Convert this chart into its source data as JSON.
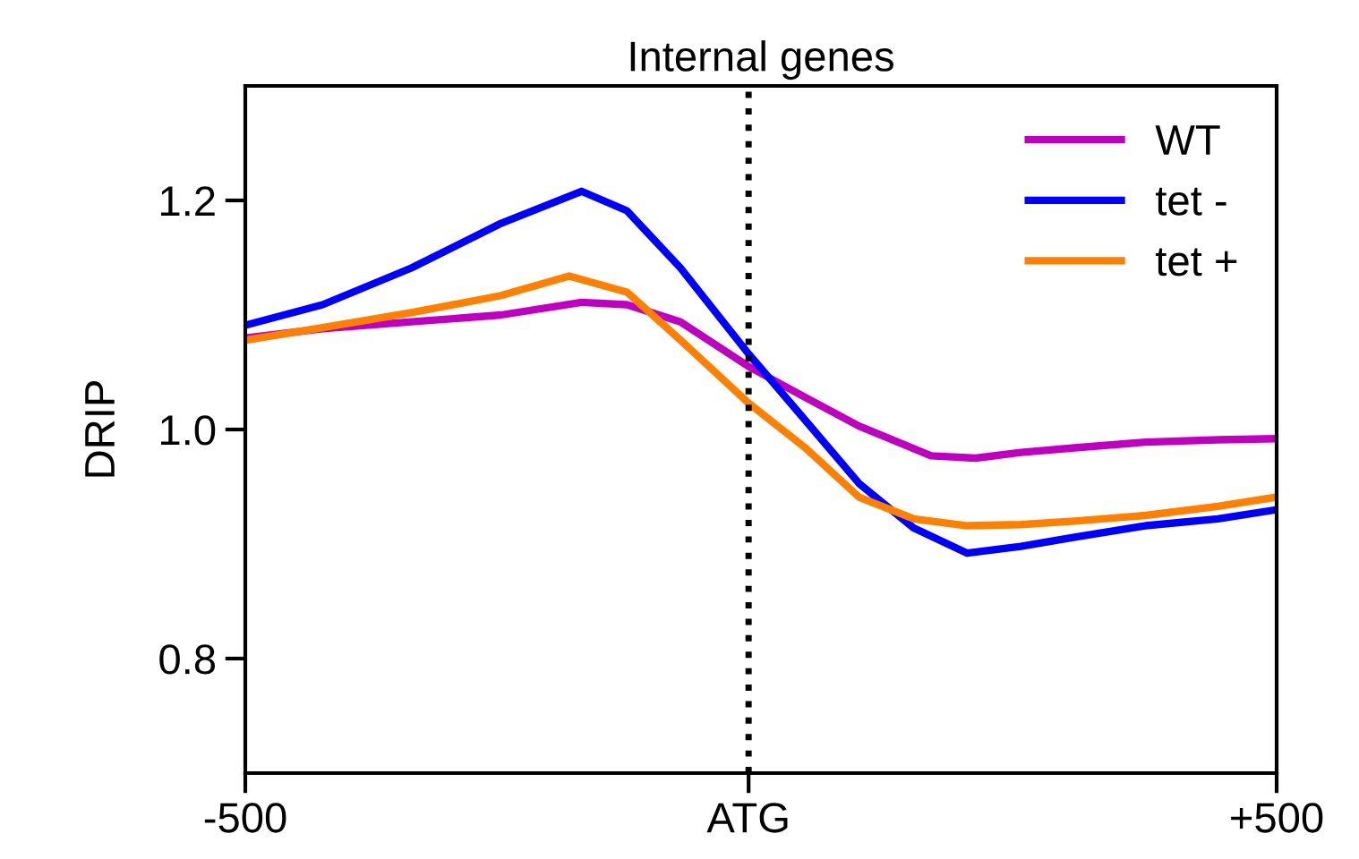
{
  "chart_data": {
    "type": "line",
    "title": "Internal genes",
    "ylabel": "DRIP",
    "xlim": [
      -500,
      500
    ],
    "xticks": [
      {
        "value": -500,
        "label": "-500"
      },
      {
        "value": -12,
        "label": "ATG"
      },
      {
        "value": 500,
        "label": "+500"
      }
    ],
    "ylim": [
      0.7,
      1.3
    ],
    "yticks": [
      {
        "value": 0.8,
        "label": "0.8"
      },
      {
        "value": 1.0,
        "label": "1.0"
      },
      {
        "value": 1.2,
        "label": "1.2"
      }
    ],
    "grid": false,
    "legend": "top right",
    "marker": "none",
    "line_style": "solid",
    "ref_lines": [
      {
        "axis": "x",
        "value": -12,
        "color": "#000000",
        "line_style": "dotted"
      }
    ],
    "series": [
      {
        "name": "WT",
        "color": "#c000c0",
        "x": [
          -500,
          -425,
          -339,
          -252,
          -174,
          -130,
          -78,
          -12,
          43,
          95,
          165,
          208,
          252,
          304,
          373,
          443,
          500
        ],
        "values": [
          1.08,
          1.088,
          1.094,
          1.1,
          1.111,
          1.109,
          1.094,
          1.055,
          1.028,
          1.003,
          0.977,
          0.975,
          0.98,
          0.984,
          0.989,
          0.991,
          0.992
        ]
      },
      {
        "name": "tet -",
        "color": "#0000ff",
        "x": [
          -500,
          -425,
          -339,
          -252,
          -174,
          -130,
          -78,
          -12,
          43,
          95,
          148,
          200,
          252,
          304,
          373,
          443,
          500
        ],
        "values": [
          1.091,
          1.109,
          1.141,
          1.18,
          1.208,
          1.191,
          1.141,
          1.066,
          1.008,
          0.953,
          0.914,
          0.892,
          0.898,
          0.906,
          0.916,
          0.922,
          0.93
        ]
      },
      {
        "name": "tet +",
        "color": "#ff8000",
        "x": [
          -500,
          -425,
          -339,
          -252,
          -186,
          -130,
          -78,
          -12,
          43,
          95,
          148,
          200,
          252,
          304,
          373,
          443,
          500
        ],
        "values": [
          1.078,
          1.089,
          1.102,
          1.117,
          1.134,
          1.12,
          1.078,
          1.023,
          0.984,
          0.941,
          0.922,
          0.916,
          0.917,
          0.92,
          0.925,
          0.933,
          0.941
        ]
      }
    ]
  }
}
